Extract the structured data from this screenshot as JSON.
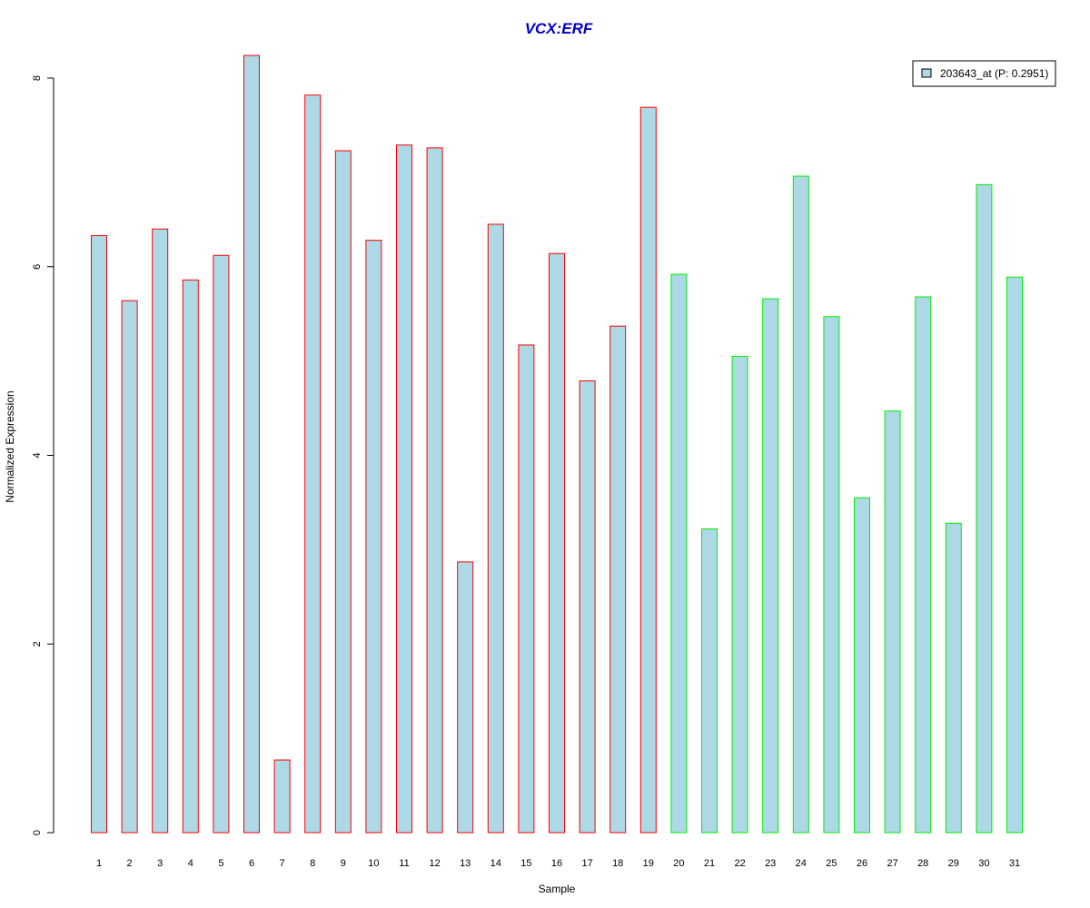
{
  "chart_data": {
    "type": "bar",
    "title": "VCX:ERF",
    "xlabel": "Sample",
    "ylabel": "Normalized Expression",
    "categories": [
      "1",
      "2",
      "3",
      "4",
      "5",
      "6",
      "7",
      "8",
      "9",
      "10",
      "11",
      "12",
      "13",
      "14",
      "15",
      "16",
      "17",
      "18",
      "19",
      "20",
      "21",
      "22",
      "23",
      "24",
      "25",
      "26",
      "27",
      "28",
      "29",
      "30",
      "31"
    ],
    "series": [
      {
        "name": "203643_at (P: 0.2951)",
        "values": [
          6.33,
          5.64,
          6.4,
          5.86,
          6.12,
          8.24,
          0.77,
          7.82,
          7.23,
          6.28,
          7.29,
          7.26,
          2.87,
          6.45,
          5.17,
          6.14,
          4.79,
          5.37,
          7.69,
          5.92,
          3.22,
          5.05,
          5.66,
          6.96,
          5.47,
          3.55,
          4.47,
          5.68,
          3.28,
          6.87,
          5.89
        ]
      }
    ],
    "groups": [
      {
        "from": 1,
        "to": 19,
        "border_color": "#ff0000"
      },
      {
        "from": 20,
        "to": 31,
        "border_color": "#00ee00"
      }
    ],
    "ylim": [
      0,
      8.3
    ],
    "yticks": [
      0,
      2,
      4,
      6,
      8
    ],
    "bar_fill": "#add8e6",
    "title_color": "#0000cc",
    "legend_position": "top-right",
    "grid": false
  }
}
